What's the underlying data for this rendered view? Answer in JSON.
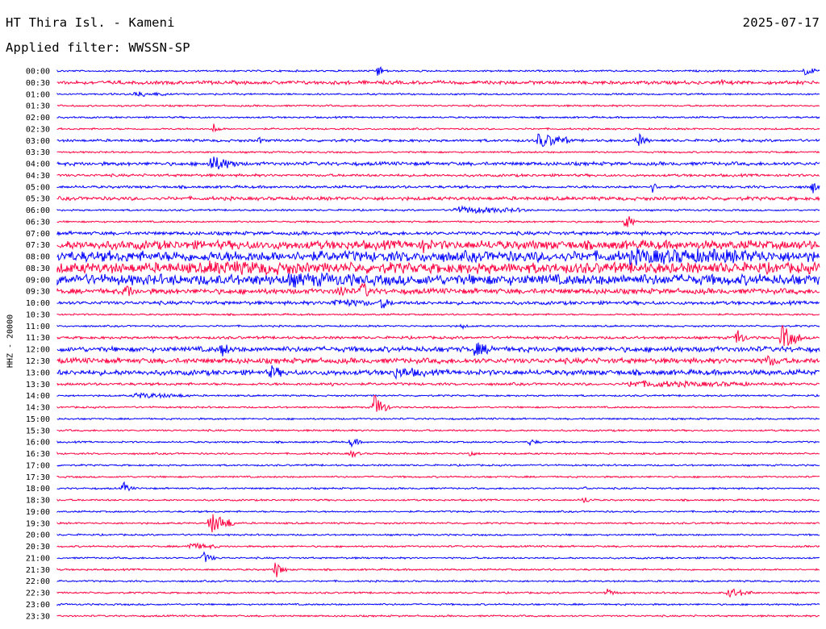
{
  "header": {
    "station": "HT Thira Isl. - Kameni",
    "date": "2025-07-17",
    "filter": "Applied filter: WWSSN-SP"
  },
  "channel_label": "HHZ - 20000",
  "chart_data": {
    "type": "line",
    "title": "HT Thira Isl. - Kameni",
    "subtitle": "Applied filter: WWSSN-SP",
    "ylabel": "HHZ - 20000",
    "colors": {
      "even": "#0000ff",
      "odd": "#ff0040"
    },
    "rows": [
      {
        "time": "00:00",
        "noise": 1,
        "events": [
          {
            "x": 0.42,
            "a": 12,
            "d": 4
          },
          {
            "x": 0.98,
            "a": 6,
            "d": 10
          }
        ]
      },
      {
        "time": "00:30",
        "noise": 2,
        "events": [
          {
            "x": 0.87,
            "a": 4,
            "d": 3
          }
        ]
      },
      {
        "time": "01:00",
        "noise": 1,
        "events": [
          {
            "x": 0.1,
            "a": 3,
            "d": 30
          }
        ]
      },
      {
        "time": "01:30",
        "noise": 1,
        "events": []
      },
      {
        "time": "02:00",
        "noise": 1,
        "events": []
      },
      {
        "time": "02:30",
        "noise": 1,
        "events": [
          {
            "x": 0.205,
            "a": 8,
            "d": 4
          }
        ]
      },
      {
        "time": "03:00",
        "noise": 1.5,
        "events": [
          {
            "x": 0.265,
            "a": 5,
            "d": 3
          },
          {
            "x": 0.63,
            "a": 9,
            "d": 30
          },
          {
            "x": 0.76,
            "a": 12,
            "d": 6
          }
        ]
      },
      {
        "time": "03:30",
        "noise": 1,
        "events": []
      },
      {
        "time": "04:00",
        "noise": 2,
        "events": [
          {
            "x": 0.2,
            "a": 9,
            "d": 25
          }
        ]
      },
      {
        "time": "04:30",
        "noise": 1.5,
        "events": []
      },
      {
        "time": "05:00",
        "noise": 1.5,
        "events": [
          {
            "x": 0.78,
            "a": 8,
            "d": 4
          },
          {
            "x": 0.99,
            "a": 14,
            "d": 3
          }
        ]
      },
      {
        "time": "05:30",
        "noise": 2,
        "events": []
      },
      {
        "time": "06:00",
        "noise": 1,
        "events": [
          {
            "x": 0.52,
            "a": 4,
            "d": 80
          }
        ]
      },
      {
        "time": "06:30",
        "noise": 1,
        "events": [
          {
            "x": 0.745,
            "a": 15,
            "d": 6
          }
        ]
      },
      {
        "time": "07:00",
        "noise": 2,
        "events": []
      },
      {
        "time": "07:30",
        "noise": 5,
        "events": [
          {
            "x": 0.48,
            "a": 10,
            "d": 4
          }
        ]
      },
      {
        "time": "08:00",
        "noise": 6,
        "events": [
          {
            "x": 0.75,
            "a": 4,
            "d": 160
          }
        ]
      },
      {
        "time": "08:30",
        "noise": 6,
        "events": [
          {
            "x": 0.2,
            "a": 3,
            "d": 100
          }
        ]
      },
      {
        "time": "09:00",
        "noise": 6,
        "events": [
          {
            "x": 0.3,
            "a": 3,
            "d": 80
          }
        ]
      },
      {
        "time": "09:30",
        "noise": 3,
        "events": [
          {
            "x": 0.09,
            "a": 14,
            "d": 4
          },
          {
            "x": 0.37,
            "a": 10,
            "d": 5
          },
          {
            "x": 0.4,
            "a": 14,
            "d": 5
          }
        ]
      },
      {
        "time": "10:00",
        "noise": 2,
        "events": [
          {
            "x": 0.36,
            "a": 4,
            "d": 40
          },
          {
            "x": 0.425,
            "a": 9,
            "d": 6
          }
        ]
      },
      {
        "time": "10:30",
        "noise": 1,
        "events": []
      },
      {
        "time": "11:00",
        "noise": 1,
        "events": [
          {
            "x": 0.53,
            "a": 5,
            "d": 3
          }
        ]
      },
      {
        "time": "11:30",
        "noise": 1.5,
        "events": [
          {
            "x": 0.89,
            "a": 16,
            "d": 6
          },
          {
            "x": 0.95,
            "a": 16,
            "d": 15
          }
        ]
      },
      {
        "time": "12:00",
        "noise": 3,
        "events": [
          {
            "x": 0.215,
            "a": 12,
            "d": 5
          },
          {
            "x": 0.545,
            "a": 7,
            "d": 20
          }
        ]
      },
      {
        "time": "12:30",
        "noise": 3,
        "events": [
          {
            "x": 0.93,
            "a": 6,
            "d": 10
          }
        ]
      },
      {
        "time": "13:00",
        "noise": 3,
        "events": [
          {
            "x": 0.28,
            "a": 8,
            "d": 8
          },
          {
            "x": 0.44,
            "a": 5,
            "d": 30
          }
        ]
      },
      {
        "time": "13:30",
        "noise": 1.5,
        "events": [
          {
            "x": 0.36,
            "a": 5,
            "d": 5
          },
          {
            "x": 0.75,
            "a": 3,
            "d": 140
          }
        ]
      },
      {
        "time": "14:00",
        "noise": 1,
        "events": [
          {
            "x": 0.1,
            "a": 3,
            "d": 60
          }
        ]
      },
      {
        "time": "14:30",
        "noise": 1,
        "events": [
          {
            "x": 0.415,
            "a": 18,
            "d": 10
          }
        ]
      },
      {
        "time": "15:00",
        "noise": 1,
        "events": []
      },
      {
        "time": "15:30",
        "noise": 1,
        "events": []
      },
      {
        "time": "16:00",
        "noise": 1,
        "events": [
          {
            "x": 0.385,
            "a": 8,
            "d": 6
          },
          {
            "x": 0.62,
            "a": 5,
            "d": 5
          }
        ]
      },
      {
        "time": "16:30",
        "noise": 1,
        "events": [
          {
            "x": 0.385,
            "a": 6,
            "d": 6
          },
          {
            "x": 0.54,
            "a": 6,
            "d": 4
          }
        ]
      },
      {
        "time": "17:00",
        "noise": 1,
        "events": []
      },
      {
        "time": "17:30",
        "noise": 1,
        "events": []
      },
      {
        "time": "18:00",
        "noise": 1,
        "events": [
          {
            "x": 0.085,
            "a": 10,
            "d": 6
          },
          {
            "x": 0.69,
            "a": 4,
            "d": 3
          }
        ]
      },
      {
        "time": "18:30",
        "noise": 1,
        "events": [
          {
            "x": 0.69,
            "a": 5,
            "d": 6
          }
        ]
      },
      {
        "time": "19:00",
        "noise": 1,
        "events": []
      },
      {
        "time": "19:30",
        "noise": 1,
        "events": [
          {
            "x": 0.2,
            "a": 14,
            "d": 20
          }
        ]
      },
      {
        "time": "20:00",
        "noise": 1,
        "events": []
      },
      {
        "time": "20:30",
        "noise": 1,
        "events": [
          {
            "x": 0.17,
            "a": 4,
            "d": 30
          }
        ]
      },
      {
        "time": "21:00",
        "noise": 1,
        "events": [
          {
            "x": 0.19,
            "a": 9,
            "d": 8
          }
        ]
      },
      {
        "time": "21:30",
        "noise": 1,
        "events": [
          {
            "x": 0.285,
            "a": 14,
            "d": 6
          }
        ]
      },
      {
        "time": "22:00",
        "noise": 1,
        "events": []
      },
      {
        "time": "22:30",
        "noise": 1,
        "events": [
          {
            "x": 0.72,
            "a": 5,
            "d": 8
          },
          {
            "x": 0.88,
            "a": 6,
            "d": 20
          }
        ]
      },
      {
        "time": "23:00",
        "noise": 1,
        "events": []
      },
      {
        "time": "23:30",
        "noise": 1,
        "events": []
      }
    ]
  }
}
